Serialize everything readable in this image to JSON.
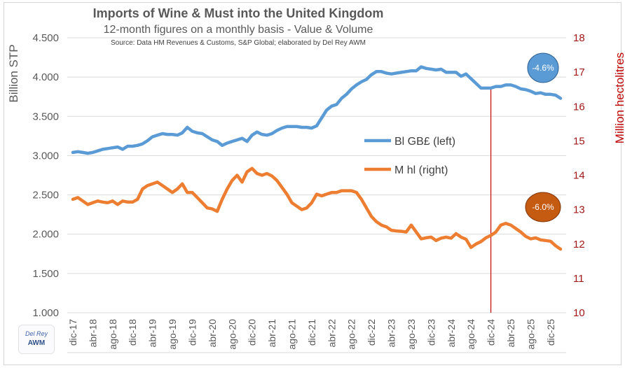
{
  "chart_data": {
    "type": "line",
    "title": "Imports of Wine & Must into the United Kingdom",
    "subtitle": "12-month figures on a monthly basis - Value & Volume",
    "source": "Source: Data HM Revenues & Customs, S&P Global; elaborated by Del Rey AWM",
    "ylabel_left": "Billion STP",
    "ylabel_right": "Million hectolitres",
    "ylim_left": [
      1.0,
      4.5
    ],
    "ylim_right": [
      10,
      18
    ],
    "yticks_left": [
      "1.000",
      "1.500",
      "2.000",
      "2.500",
      "3.000",
      "3.500",
      "4.000",
      "4.500"
    ],
    "yticks_right": [
      "10",
      "11",
      "12",
      "13",
      "14",
      "15",
      "16",
      "17",
      "18"
    ],
    "xtick_labels": [
      "dic-17",
      "abr-18",
      "ago-18",
      "dic-18",
      "abr-19",
      "ago-19",
      "dic-19",
      "abr-20",
      "ago-20",
      "dic-20",
      "abr-21",
      "ago-21",
      "dic-21",
      "abr-22",
      "ago-22",
      "dic-22",
      "abr-23",
      "ago-23",
      "dic-23",
      "abr-24",
      "ago-24",
      "dic-24",
      "abr-25",
      "ago-25",
      "dic-25"
    ],
    "x_start": "dic-17",
    "x_end": "dic-25",
    "grid": true,
    "legend_position": "center-right",
    "series": [
      {
        "name": "Bl GB£ (left)",
        "axis": "left",
        "color": "#5b9bd5",
        "values": [
          3.04,
          3.05,
          3.04,
          3.03,
          3.04,
          3.06,
          3.08,
          3.09,
          3.1,
          3.11,
          3.08,
          3.12,
          3.12,
          3.13,
          3.15,
          3.19,
          3.24,
          3.26,
          3.28,
          3.27,
          3.27,
          3.26,
          3.29,
          3.36,
          3.31,
          3.29,
          3.28,
          3.24,
          3.2,
          3.18,
          3.13,
          3.16,
          3.18,
          3.2,
          3.22,
          3.18,
          3.26,
          3.3,
          3.27,
          3.26,
          3.28,
          3.32,
          3.35,
          3.37,
          3.37,
          3.37,
          3.36,
          3.36,
          3.35,
          3.38,
          3.48,
          3.58,
          3.63,
          3.65,
          3.73,
          3.78,
          3.85,
          3.9,
          3.94,
          3.97,
          4.03,
          4.07,
          4.07,
          4.05,
          4.04,
          4.05,
          4.06,
          4.07,
          4.08,
          4.08,
          4.13,
          4.11,
          4.1,
          4.09,
          4.1,
          4.06,
          4.06,
          4.06,
          4.01,
          4.04,
          3.98,
          3.92,
          3.86,
          3.86,
          3.86,
          3.88,
          3.88,
          3.9,
          3.9,
          3.88,
          3.85,
          3.84,
          3.82,
          3.79,
          3.8,
          3.78,
          3.78,
          3.77,
          3.73
        ]
      },
      {
        "name": "M hl (right)",
        "axis": "right",
        "color": "#ed7d31",
        "values": [
          13.3,
          13.35,
          13.25,
          13.15,
          13.2,
          13.25,
          13.22,
          13.2,
          13.25,
          13.15,
          13.25,
          13.22,
          13.22,
          13.3,
          13.6,
          13.7,
          13.75,
          13.8,
          13.7,
          13.6,
          13.5,
          13.6,
          13.75,
          13.5,
          13.5,
          13.35,
          13.2,
          13.05,
          13.02,
          12.95,
          13.3,
          13.6,
          13.85,
          14.0,
          13.8,
          14.1,
          14.2,
          14.05,
          14.0,
          14.05,
          13.98,
          13.85,
          13.65,
          13.45,
          13.2,
          13.1,
          13.0,
          13.05,
          13.2,
          13.45,
          13.4,
          13.45,
          13.5,
          13.5,
          13.55,
          13.55,
          13.55,
          13.5,
          13.3,
          13.05,
          12.8,
          12.65,
          12.55,
          12.5,
          12.4,
          12.38,
          12.37,
          12.35,
          12.55,
          12.35,
          12.15,
          12.18,
          12.2,
          12.1,
          12.17,
          12.2,
          12.17,
          12.3,
          12.2,
          12.14,
          11.9,
          12.0,
          12.07,
          12.18,
          12.25,
          12.35,
          12.55,
          12.6,
          12.55,
          12.45,
          12.35,
          12.22,
          12.15,
          12.18,
          12.12,
          12.1,
          12.08,
          11.95,
          11.85
        ]
      }
    ],
    "annotations": [
      {
        "label": "-4.6%",
        "series": "Bl GB£ (left)",
        "color": "#5b9bd5"
      },
      {
        "label": "-6.0%",
        "series": "M hl (right)",
        "color": "#c55a11"
      },
      {
        "type": "vertical-line",
        "at": "dic-24",
        "color": "#c00000"
      }
    ]
  },
  "logo": {
    "line1": "Del Rey",
    "line2": "AWM"
  }
}
